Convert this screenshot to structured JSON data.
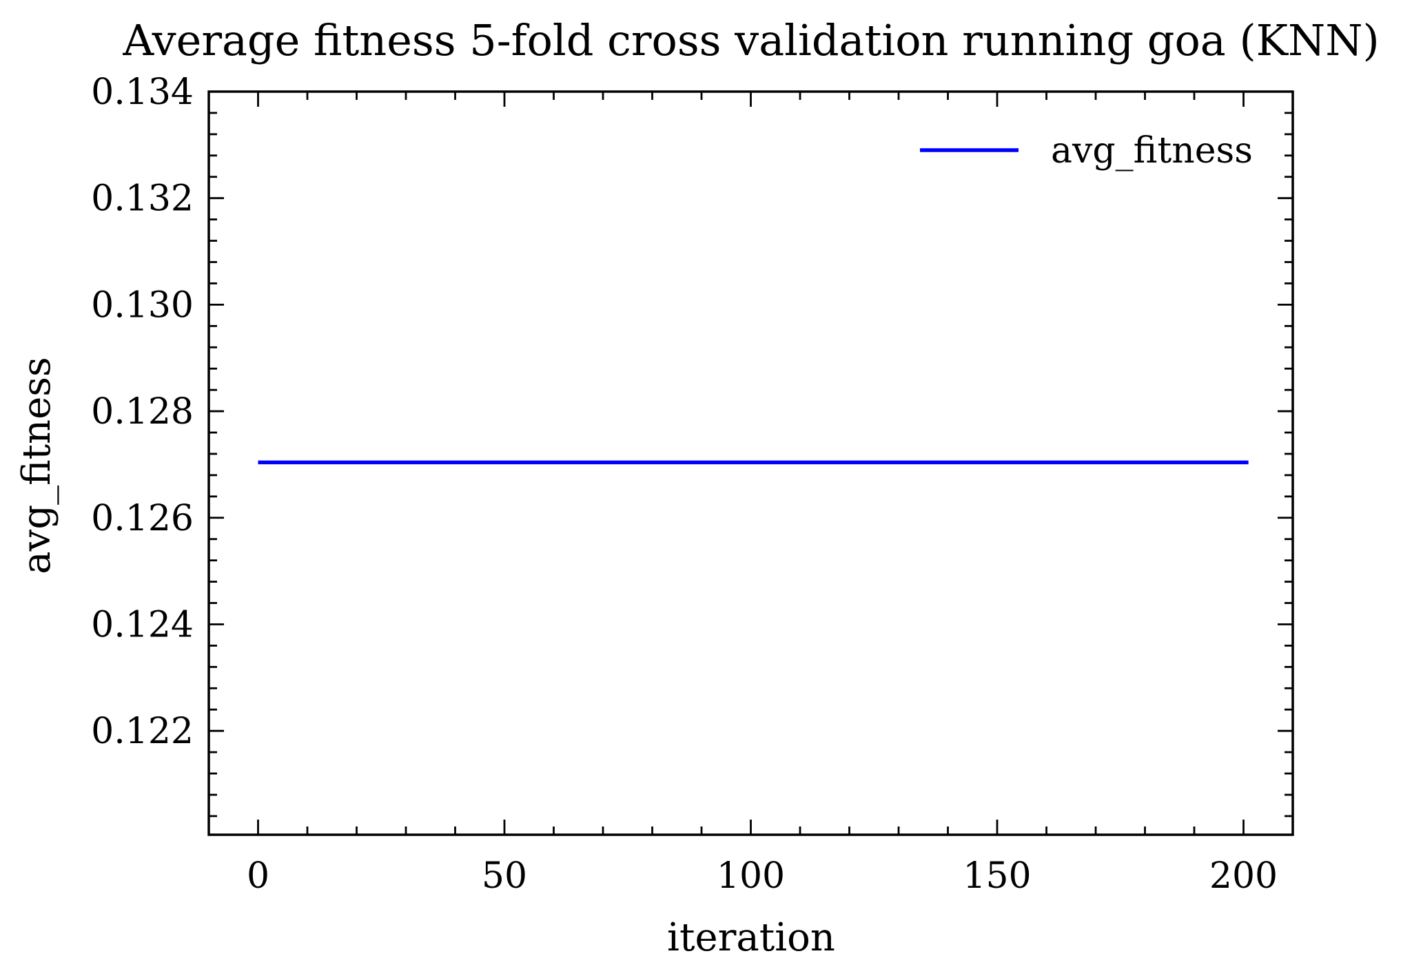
{
  "chart_data": {
    "type": "line",
    "title": "Average fitness 5-fold cross validation running goa (KNN)",
    "xlabel": "iteration",
    "ylabel": "avg_fitness",
    "xlim": [
      -10,
      210
    ],
    "ylim": [
      0.12005,
      0.134
    ],
    "x_ticks": [
      0,
      50,
      100,
      150,
      200
    ],
    "x_tick_labels": [
      "0",
      "50",
      "100",
      "150",
      "200"
    ],
    "y_ticks": [
      0.122,
      0.124,
      0.126,
      0.128,
      0.13,
      0.132,
      0.134
    ],
    "y_tick_labels": [
      "0.122",
      "0.124",
      "0.126",
      "0.128",
      "0.130",
      "0.132",
      "0.134"
    ],
    "grid": false,
    "legend_position": "top-right",
    "series": [
      {
        "name": "avg_fitness",
        "color": "#0000ff",
        "x": [
          0,
          201
        ],
        "y": [
          0.12704,
          0.12704
        ]
      }
    ]
  }
}
